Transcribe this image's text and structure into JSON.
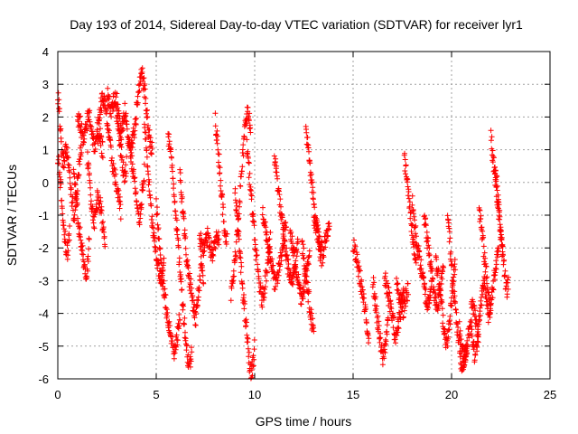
{
  "chart_data": {
    "type": "scatter",
    "title": "Day 193 of 2014, Sidereal Day-to-day VTEC variation (SDTVAR) for receiver lyr1",
    "xlabel": "GPS time / hours",
    "ylabel": "SDTVAR / TECUs",
    "xlim": [
      0,
      25
    ],
    "ylim": [
      -6,
      4
    ],
    "xticks": [
      0,
      5,
      10,
      15,
      20,
      25
    ],
    "yticks": [
      -6,
      -5,
      -4,
      -3,
      -2,
      -1,
      0,
      1,
      2,
      3,
      4
    ],
    "grid": true,
    "marker": "+",
    "marker_color": "#ff0000",
    "point_interval_hours": 0.015,
    "series": [
      {
        "name": "lyr1",
        "segments": [
          {
            "x_start": 0.0,
            "x_end": 0.3,
            "values": [
              2.7,
              2.5,
              2.3,
              2.0,
              1.8,
              1.5,
              1.0,
              0.7,
              0.5,
              0.8
            ]
          },
          {
            "x_start": 0.0,
            "x_end": 0.6,
            "values": [
              0.8,
              0.5,
              0.2,
              -0.3,
              -0.8,
              -1.2,
              -1.5,
              -1.8,
              -2.0,
              -2.2,
              -1.9,
              -1.6
            ]
          },
          {
            "x_start": 0.3,
            "x_end": 1.2,
            "values": [
              0.6,
              0.9,
              1.1,
              0.7,
              0.2,
              -0.3,
              -0.7,
              -1.0,
              -0.6,
              -0.2,
              0.3,
              0.8,
              1.0
            ]
          },
          {
            "x_start": 0.8,
            "x_end": 1.6,
            "values": [
              0.5,
              0.0,
              -0.6,
              -1.2,
              -1.6,
              -1.9,
              -2.2,
              -2.6,
              -2.9,
              -2.5,
              -1.8
            ]
          },
          {
            "x_start": 1.0,
            "x_end": 2.3,
            "values": [
              1.8,
              2.0,
              1.6,
              1.2,
              1.5,
              1.9,
              2.1,
              1.7,
              1.3,
              1.0,
              1.4,
              1.6,
              1.2,
              0.9
            ]
          },
          {
            "x_start": 1.5,
            "x_end": 2.4,
            "values": [
              0.8,
              0.2,
              -0.4,
              -0.9,
              -1.2,
              -0.8,
              -0.3,
              -0.6,
              -1.0,
              -1.4,
              -1.7
            ]
          },
          {
            "x_start": 2.0,
            "x_end": 3.2,
            "values": [
              1.5,
              2.0,
              2.4,
              2.6,
              2.3,
              1.9,
              1.4,
              0.9,
              0.5,
              0.2,
              -0.2,
              -0.5,
              -0.9
            ]
          },
          {
            "x_start": 2.5,
            "x_end": 3.5,
            "values": [
              2.7,
              2.5,
              2.2,
              2.4,
              2.6,
              2.1,
              1.6,
              1.0,
              0.5,
              0.2,
              0.6
            ]
          },
          {
            "x_start": 3.0,
            "x_end": 4.0,
            "values": [
              2.5,
              2.0,
              1.5,
              1.8,
              2.2,
              1.7,
              1.2,
              0.9,
              1.3,
              1.7,
              1.9
            ]
          },
          {
            "x_start": 3.6,
            "x_end": 4.4,
            "values": [
              1.4,
              1.0,
              0.5,
              0.2,
              -0.3,
              -0.9,
              -1.2,
              -0.7,
              -0.1,
              0.4
            ]
          },
          {
            "x_start": 4.0,
            "x_end": 4.8,
            "values": [
              2.2,
              2.7,
              3.0,
              3.3,
              3.1,
              2.6,
              2.0,
              1.5,
              1.2,
              0.9
            ]
          },
          {
            "x_start": 4.4,
            "x_end": 5.4,
            "values": [
              1.8,
              1.0,
              0.2,
              -0.6,
              -1.3,
              -1.8,
              -2.2,
              -2.6,
              -3.0,
              -2.8,
              -2.5
            ]
          },
          {
            "x_start": 5.0,
            "x_end": 6.2,
            "values": [
              -0.6,
              -1.5,
              -2.2,
              -2.8,
              -3.3,
              -3.8,
              -4.2,
              -4.5,
              -4.8,
              -5.2,
              -5.0,
              -4.6,
              -4.0
            ]
          },
          {
            "x_start": 5.6,
            "x_end": 6.8,
            "values": [
              1.5,
              1.0,
              0.4,
              -0.4,
              -1.3,
              -2.2,
              -3.0,
              -3.8,
              -4.6,
              -5.3,
              -5.6,
              -5.2
            ]
          },
          {
            "x_start": 6.2,
            "x_end": 7.4,
            "values": [
              0.4,
              -0.4,
              -1.2,
              -2.0,
              -2.6,
              -3.0,
              -3.4,
              -3.8,
              -4.2,
              -3.6,
              -3.0,
              -2.4,
              -2.9
            ]
          },
          {
            "x_start": 7.2,
            "x_end": 8.2,
            "values": [
              -1.7,
              -1.9,
              -2.1,
              -1.8,
              -1.6,
              -2.0,
              -2.2,
              -1.9,
              -1.7,
              -1.8
            ]
          },
          {
            "x_start": 8.0,
            "x_end": 8.6,
            "values": [
              1.9,
              1.3,
              0.6,
              -0.2,
              -0.9,
              -1.5,
              -1.8
            ]
          },
          {
            "x_start": 8.8,
            "x_end": 9.8,
            "values": [
              -3.4,
              -3.0,
              -2.4,
              -1.6,
              -0.8,
              0.0,
              0.8,
              1.6,
              2.2,
              2.0,
              1.5
            ]
          },
          {
            "x_start": 9.0,
            "x_end": 10.0,
            "values": [
              -0.2,
              -1.0,
              -1.8,
              -2.6,
              -3.3,
              -4.0,
              -4.6,
              -5.3,
              -5.9,
              -5.6,
              -5.0
            ]
          },
          {
            "x_start": 9.6,
            "x_end": 10.8,
            "values": [
              1.2,
              0.4,
              -0.4,
              -1.2,
              -2.0,
              -2.6,
              -3.2,
              -3.6,
              -3.3,
              -2.8,
              -2.2,
              -1.8
            ]
          },
          {
            "x_start": 10.4,
            "x_end": 11.6,
            "values": [
              -1.0,
              -1.3,
              -1.7,
              -2.0,
              -2.4,
              -2.8,
              -3.2,
              -2.9,
              -2.5,
              -2.1,
              -1.6,
              -1.2
            ]
          },
          {
            "x_start": 11.0,
            "x_end": 12.2,
            "values": [
              0.8,
              0.3,
              -0.3,
              -0.9,
              -1.5,
              -2.0,
              -2.4,
              -2.8,
              -3.2,
              -2.7,
              -2.2,
              -1.8
            ]
          },
          {
            "x_start": 11.8,
            "x_end": 12.8,
            "values": [
              -1.6,
              -1.9,
              -2.3,
              -2.7,
              -3.1,
              -3.5,
              -3.3,
              -2.9,
              -2.5,
              -2.0
            ]
          },
          {
            "x_start": 12.4,
            "x_end": 13.0,
            "values": [
              -1.9,
              -2.3,
              -2.8,
              -3.3,
              -3.8,
              -4.2,
              -4.6
            ]
          },
          {
            "x_start": 12.6,
            "x_end": 13.4,
            "values": [
              1.7,
              1.0,
              0.3,
              -0.3,
              -0.9,
              -1.5,
              -2.0,
              -2.4
            ]
          },
          {
            "x_start": 13.0,
            "x_end": 13.8,
            "values": [
              -1.0,
              -1.3,
              -1.6,
              -1.9,
              -2.2,
              -1.8,
              -1.5,
              -1.4
            ]
          },
          {
            "x_start": 15.0,
            "x_end": 15.8,
            "values": [
              -1.9,
              -2.2,
              -2.5,
              -2.9,
              -3.3,
              -3.8,
              -4.3,
              -4.7
            ]
          },
          {
            "x_start": 16.0,
            "x_end": 16.8,
            "values": [
              -3.0,
              -3.5,
              -4.0,
              -4.5,
              -5.0,
              -5.4,
              -5.1,
              -4.6,
              -4.0
            ]
          },
          {
            "x_start": 16.6,
            "x_end": 17.6,
            "values": [
              -2.9,
              -3.2,
              -3.5,
              -3.9,
              -4.3,
              -4.8,
              -4.4,
              -4.0,
              -3.6,
              -3.3
            ]
          },
          {
            "x_start": 17.2,
            "x_end": 17.8,
            "values": [
              -3.1,
              -3.4,
              -3.6,
              -3.9,
              -3.5,
              -3.3
            ]
          },
          {
            "x_start": 17.6,
            "x_end": 18.2,
            "values": [
              0.7,
              0.3,
              -0.3,
              -0.9,
              -1.5,
              -2.0,
              -2.4
            ]
          },
          {
            "x_start": 18.0,
            "x_end": 19.0,
            "values": [
              -0.6,
              -1.2,
              -1.8,
              -2.2,
              -2.6,
              -3.0,
              -3.4,
              -3.8,
              -3.4,
              -3.0
            ]
          },
          {
            "x_start": 18.6,
            "x_end": 19.6,
            "values": [
              -1.0,
              -1.5,
              -2.0,
              -2.5,
              -3.0,
              -3.5,
              -3.8,
              -3.4,
              -2.9,
              -2.4
            ]
          },
          {
            "x_start": 19.2,
            "x_end": 20.2,
            "values": [
              -2.2,
              -2.8,
              -3.4,
              -4.0,
              -4.6,
              -4.9,
              -4.5,
              -3.8,
              -3.0,
              -2.4
            ]
          },
          {
            "x_start": 19.8,
            "x_end": 20.8,
            "values": [
              -1.0,
              -1.8,
              -2.6,
              -3.4,
              -4.2,
              -4.8,
              -5.4,
              -5.7,
              -5.3,
              -4.9
            ]
          },
          {
            "x_start": 20.4,
            "x_end": 21.4,
            "values": [
              -4.5,
              -5.0,
              -5.4,
              -5.1,
              -4.7,
              -4.2,
              -4.8,
              -5.3,
              -5.0,
              -4.4
            ]
          },
          {
            "x_start": 21.0,
            "x_end": 22.0,
            "values": [
              -3.5,
              -3.8,
              -4.2,
              -4.6,
              -4.0,
              -3.4,
              -3.0,
              -3.6,
              -4.1,
              -3.6
            ]
          },
          {
            "x_start": 21.4,
            "x_end": 22.4,
            "values": [
              -0.8,
              -1.4,
              -2.0,
              -2.6,
              -3.2,
              -3.8,
              -3.4,
              -2.8,
              -2.3,
              -1.9
            ]
          },
          {
            "x_start": 22.0,
            "x_end": 22.6,
            "values": [
              1.4,
              0.8,
              0.2,
              -0.4,
              -1.0,
              -1.6,
              -2.2
            ]
          },
          {
            "x_start": 22.2,
            "x_end": 22.9,
            "values": [
              0.6,
              0.0,
              -0.8,
              -1.6,
              -2.2,
              -2.8,
              -3.3,
              -3.0
            ]
          }
        ]
      }
    ]
  }
}
